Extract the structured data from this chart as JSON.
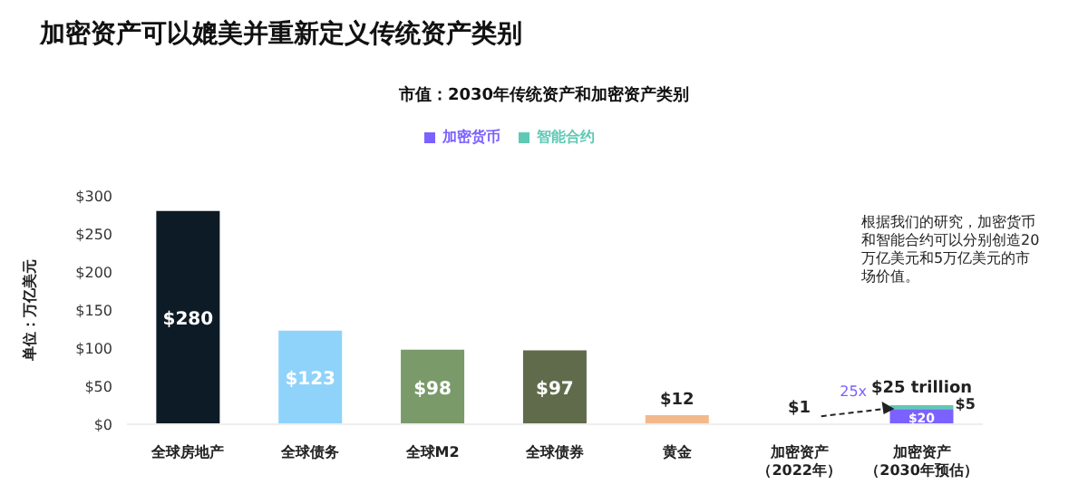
{
  "chart_data": {
    "type": "bar",
    "title": "加密资产可以媲美并重新定义传统资产类别",
    "subtitle": "市值：2030年传统资产和加密资产类别",
    "ylabel": "单位：万亿美元",
    "categories": [
      "全球房地产",
      "全球债务",
      "全球M2",
      "全球债券",
      "黄金",
      "加密资产（2022年）",
      "加密资产（2030年预估）"
    ],
    "stacked": true,
    "series": [
      {
        "colors": [
          "#0d1b26",
          "#8fd3fb",
          "#7a9a6a",
          "#5f6b4a",
          "#f3b88c",
          "#9a8fd8",
          null
        ],
        "values": [
          280,
          123,
          98,
          97,
          12,
          1,
          null
        ],
        "value_labels": [
          "$280",
          "$123",
          "$98",
          "$97",
          "$12",
          "$1",
          null
        ]
      },
      {
        "name": "加密货币",
        "color": "#7b61ff",
        "values": [
          null,
          null,
          null,
          null,
          null,
          null,
          20
        ],
        "value_labels": [
          null,
          null,
          null,
          null,
          null,
          null,
          "$20"
        ]
      },
      {
        "name": "智能合约",
        "color": "#5fc9b5",
        "values": [
          null,
          null,
          null,
          null,
          null,
          null,
          5
        ],
        "value_labels": [
          null,
          null,
          null,
          null,
          null,
          null,
          "$5"
        ]
      }
    ],
    "totals": [
      null,
      null,
      null,
      null,
      null,
      null,
      "$25 trillion"
    ],
    "ylim": [
      0,
      300
    ],
    "yticks": [
      {
        "value": 0,
        "label": "$0"
      },
      {
        "value": 50,
        "label": "$50"
      },
      {
        "value": 100,
        "label": "$100"
      },
      {
        "value": 150,
        "label": "$150"
      },
      {
        "value": 200,
        "label": "$200"
      },
      {
        "value": 250,
        "label": "$250"
      },
      {
        "value": 300,
        "label": "$300"
      }
    ],
    "grid": false,
    "legend": "top",
    "annotations": [
      "25x",
      "根据我们的研究，加密货币和智能合约可以分别创造20万亿美元和5万亿美元的市场价值。"
    ]
  }
}
